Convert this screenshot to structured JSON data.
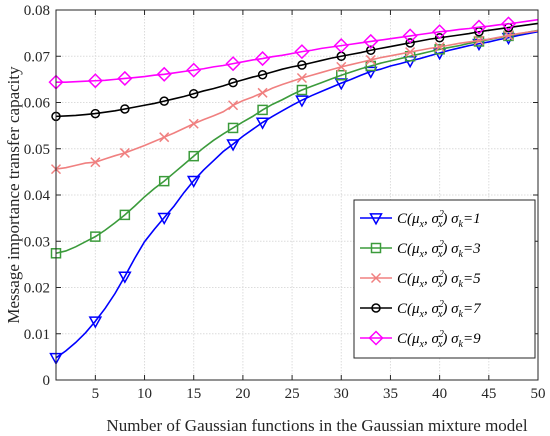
{
  "chart_data": {
    "type": "line",
    "title": "",
    "xlabel": "Number of Gaussian functions in the Gaussian mixture model",
    "ylabel": "Message importance transfer capacity",
    "xlim": [
      1,
      50
    ],
    "ylim": [
      0,
      0.08
    ],
    "xticks": [
      5,
      10,
      15,
      20,
      25,
      30,
      35,
      40,
      45,
      50
    ],
    "yticks": [
      0,
      0.01,
      0.02,
      0.03,
      0.04,
      0.05,
      0.06,
      0.07,
      0.08
    ],
    "ytick_labels": [
      "0",
      "0.01",
      "0.02",
      "0.03",
      "0.04",
      "0.05",
      "0.06",
      "0.07",
      "0.08"
    ],
    "grid": true,
    "legend_position": "lower-right",
    "series": [
      {
        "name": "σk=1",
        "color": "#0000ff",
        "marker": "triangle-down",
        "x": [
          1,
          2,
          3,
          4,
          5,
          6,
          7,
          8,
          9,
          10,
          11,
          12,
          13,
          14,
          15,
          16,
          17,
          18,
          19,
          20,
          21,
          22,
          23,
          24,
          25,
          26,
          27,
          28,
          29,
          30,
          31,
          32,
          33,
          34,
          35,
          36,
          37,
          38,
          39,
          40,
          41,
          42,
          43,
          44,
          45,
          46,
          47,
          48,
          49,
          50
        ],
        "values": [
          0.0048,
          0.0063,
          0.0081,
          0.0102,
          0.0127,
          0.0155,
          0.0187,
          0.0224,
          0.0263,
          0.0299,
          0.0326,
          0.0351,
          0.0376,
          0.0405,
          0.0431,
          0.0454,
          0.0474,
          0.0494,
          0.051,
          0.0527,
          0.0542,
          0.0557,
          0.057,
          0.0582,
          0.0594,
          0.0605,
          0.0615,
          0.0624,
          0.0633,
          0.0642,
          0.065,
          0.0659,
          0.0667,
          0.0672,
          0.0679,
          0.0684,
          0.069,
          0.0695,
          0.0701,
          0.0707,
          0.0713,
          0.0718,
          0.0723,
          0.0727,
          0.0731,
          0.0736,
          0.074,
          0.0745,
          0.0749,
          0.0753
        ],
        "marker_x": [
          1,
          5,
          8,
          12,
          15,
          19,
          22,
          26,
          30,
          33,
          37,
          40,
          44,
          47
        ]
      },
      {
        "name": "σk=3",
        "color": "#3b9b3b",
        "marker": "square",
        "x": [
          1,
          2,
          3,
          4,
          5,
          6,
          7,
          8,
          9,
          10,
          11,
          12,
          13,
          14,
          15,
          16,
          17,
          18,
          19,
          20,
          21,
          22,
          23,
          24,
          25,
          26,
          27,
          28,
          29,
          30,
          31,
          32,
          33,
          34,
          35,
          36,
          37,
          38,
          39,
          40,
          41,
          42,
          43,
          44,
          45,
          46,
          47,
          48,
          49,
          50
        ],
        "values": [
          0.0274,
          0.0279,
          0.0288,
          0.0299,
          0.031,
          0.0324,
          0.034,
          0.0357,
          0.0376,
          0.0396,
          0.0414,
          0.043,
          0.0448,
          0.0466,
          0.0484,
          0.0502,
          0.0518,
          0.0532,
          0.0545,
          0.0558,
          0.057,
          0.0584,
          0.0596,
          0.0606,
          0.0617,
          0.0627,
          0.0635,
          0.0643,
          0.0651,
          0.0659,
          0.0666,
          0.0673,
          0.0679,
          0.0685,
          0.069,
          0.0695,
          0.07,
          0.0705,
          0.071,
          0.0715,
          0.0719,
          0.0723,
          0.0728,
          0.0732,
          0.0736,
          0.074,
          0.0744,
          0.0748,
          0.0752,
          0.0756
        ],
        "marker_x": [
          1,
          5,
          8,
          12,
          15,
          19,
          22,
          26,
          30,
          33,
          37,
          40,
          44,
          47
        ]
      },
      {
        "name": "σk=5",
        "color": "#f08080",
        "marker": "cross",
        "x": [
          1,
          2,
          3,
          4,
          5,
          6,
          7,
          8,
          9,
          10,
          11,
          12,
          13,
          14,
          15,
          16,
          17,
          18,
          19,
          20,
          21,
          22,
          23,
          24,
          25,
          26,
          27,
          28,
          29,
          30,
          31,
          32,
          33,
          34,
          35,
          36,
          37,
          38,
          39,
          40,
          41,
          42,
          43,
          44,
          45,
          46,
          47,
          48,
          49,
          50
        ],
        "values": [
          0.0456,
          0.0459,
          0.0464,
          0.0469,
          0.0471,
          0.0478,
          0.0485,
          0.0491,
          0.0499,
          0.0507,
          0.0516,
          0.0525,
          0.0534,
          0.0544,
          0.0554,
          0.0563,
          0.0571,
          0.058,
          0.0594,
          0.0604,
          0.0612,
          0.0621,
          0.0631,
          0.0639,
          0.0646,
          0.0653,
          0.0659,
          0.0665,
          0.0671,
          0.0677,
          0.0682,
          0.0687,
          0.0692,
          0.0697,
          0.0701,
          0.0705,
          0.0709,
          0.0713,
          0.0717,
          0.072,
          0.0724,
          0.0728,
          0.0731,
          0.0734,
          0.0737,
          0.0741,
          0.0745,
          0.0749,
          0.0752,
          0.0755
        ],
        "marker_x": [
          1,
          5,
          8,
          12,
          15,
          19,
          22,
          26,
          30,
          33,
          37,
          40,
          44,
          47
        ]
      },
      {
        "name": "σk=7",
        "color": "#000000",
        "marker": "circle",
        "x": [
          1,
          2,
          3,
          4,
          5,
          6,
          7,
          8,
          9,
          10,
          11,
          12,
          13,
          14,
          15,
          16,
          17,
          18,
          19,
          20,
          21,
          22,
          23,
          24,
          25,
          26,
          27,
          28,
          29,
          30,
          31,
          32,
          33,
          34,
          35,
          36,
          37,
          38,
          39,
          40,
          41,
          42,
          43,
          44,
          45,
          46,
          47,
          48,
          49,
          50
        ],
        "values": [
          0.057,
          0.0571,
          0.0572,
          0.0574,
          0.0576,
          0.0579,
          0.0582,
          0.0586,
          0.059,
          0.0594,
          0.0598,
          0.0603,
          0.0608,
          0.0613,
          0.0619,
          0.0625,
          0.063,
          0.0636,
          0.0643,
          0.0649,
          0.0655,
          0.066,
          0.0666,
          0.0672,
          0.0677,
          0.0681,
          0.0686,
          0.0691,
          0.0696,
          0.07,
          0.0704,
          0.0708,
          0.0713,
          0.0717,
          0.0721,
          0.0725,
          0.0729,
          0.0733,
          0.0737,
          0.074,
          0.0743,
          0.0746,
          0.0749,
          0.0753,
          0.0756,
          0.0759,
          0.0762,
          0.0765,
          0.0768,
          0.0771
        ],
        "marker_x": [
          1,
          5,
          8,
          12,
          15,
          19,
          22,
          26,
          30,
          33,
          37,
          40,
          44,
          47
        ]
      },
      {
        "name": "σk=9",
        "color": "#ff00ff",
        "marker": "diamond",
        "x": [
          1,
          2,
          3,
          4,
          5,
          6,
          7,
          8,
          9,
          10,
          11,
          12,
          13,
          14,
          15,
          16,
          17,
          18,
          19,
          20,
          21,
          22,
          23,
          24,
          25,
          26,
          27,
          28,
          29,
          30,
          31,
          32,
          33,
          34,
          35,
          36,
          37,
          38,
          39,
          40,
          41,
          42,
          43,
          44,
          45,
          46,
          47,
          48,
          49,
          50
        ],
        "values": [
          0.0644,
          0.0644,
          0.0645,
          0.0646,
          0.0647,
          0.0648,
          0.065,
          0.0652,
          0.0654,
          0.0656,
          0.0659,
          0.0661,
          0.0664,
          0.0667,
          0.067,
          0.0673,
          0.0677,
          0.068,
          0.0684,
          0.0688,
          0.0692,
          0.0695,
          0.0699,
          0.0702,
          0.0706,
          0.071,
          0.0713,
          0.0717,
          0.072,
          0.0723,
          0.0726,
          0.0729,
          0.0732,
          0.0735,
          0.0738,
          0.0741,
          0.0744,
          0.0747,
          0.075,
          0.0753,
          0.0755,
          0.0758,
          0.076,
          0.0763,
          0.0765,
          0.0768,
          0.077,
          0.0773,
          0.0776,
          0.0779
        ],
        "marker_x": [
          1,
          5,
          8,
          12,
          15,
          19,
          22,
          26,
          30,
          33,
          37,
          40,
          44,
          47
        ]
      }
    ]
  }
}
